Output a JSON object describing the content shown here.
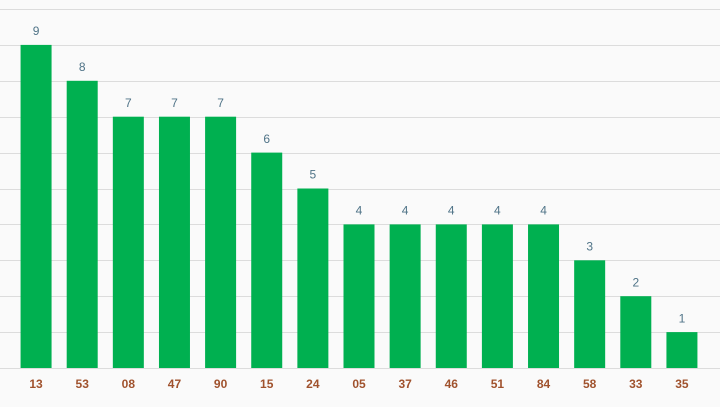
{
  "chart_data": {
    "type": "bar",
    "categories": [
      "13",
      "53",
      "08",
      "47",
      "90",
      "15",
      "24",
      "05",
      "37",
      "46",
      "51",
      "84",
      "58",
      "33",
      "35"
    ],
    "values": [
      9,
      8,
      7,
      7,
      7,
      6,
      5,
      4,
      4,
      4,
      4,
      4,
      3,
      2,
      1
    ],
    "color": "#00b050",
    "ylim": [
      0,
      10
    ],
    "yticks": [
      0,
      1,
      2,
      3,
      4,
      5,
      6,
      7,
      8,
      9,
      10
    ],
    "grid": true
  }
}
